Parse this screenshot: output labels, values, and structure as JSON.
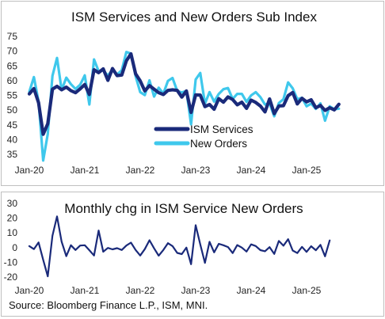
{
  "chart_data": [
    {
      "type": "line",
      "title": "ISM Services and New Orders Sub Index",
      "xlabel": "",
      "ylabel": "",
      "ylim": [
        35,
        75
      ],
      "yticks": [
        "75",
        "70",
        "65",
        "60",
        "55",
        "50",
        "45",
        "40",
        "35"
      ],
      "xticks": [
        "Jan-20",
        "Jan-21",
        "Jan-22",
        "Jan-23",
        "Jan-24",
        "Jan-25"
      ],
      "legend_position": "bottom-center",
      "grid": false,
      "x_start": "2020-01",
      "series": [
        {
          "name": "ISM Services",
          "color": "#1a2a7a",
          "values": [
            55.5,
            57.3,
            52.5,
            41.8,
            45.4,
            57.1,
            58.1,
            56.9,
            57.8,
            56.6,
            55.9,
            57.2,
            58.7,
            55.3,
            63.7,
            62.7,
            64.0,
            60.1,
            64.1,
            61.7,
            61.9,
            66.7,
            69.1,
            62.3,
            59.9,
            56.5,
            58.3,
            57.1,
            55.9,
            55.3,
            56.7,
            56.9,
            56.7,
            54.4,
            56.5,
            49.2,
            55.2,
            55.1,
            51.2,
            51.9,
            50.3,
            53.9,
            52.7,
            54.5,
            53.6,
            51.8,
            52.7,
            50.6,
            53.4,
            52.6,
            51.4,
            49.4,
            53.8,
            48.8,
            51.4,
            51.5,
            54.9,
            56.0,
            52.1,
            54.0,
            52.8,
            53.5,
            50.8,
            51.6,
            49.9,
            50.8,
            50.1,
            52.0
          ]
        },
        {
          "name": "New Orders",
          "color": "#3fc8ec",
          "values": [
            56.2,
            61.2,
            52.9,
            32.9,
            41.9,
            61.6,
            67.7,
            56.8,
            61.0,
            58.8,
            57.2,
            58.6,
            61.8,
            51.9,
            67.2,
            63.2,
            63.5,
            61.7,
            63.7,
            62.1,
            63.5,
            69.7,
            69.2,
            61.5,
            56.1,
            55.1,
            60.1,
            54.6,
            57.6,
            55.6,
            59.9,
            60.9,
            56.5,
            56.0,
            56.5,
            45.2,
            60.4,
            62.6,
            52.2,
            56.1,
            52.9,
            55.5,
            57.1,
            57.5,
            53.8,
            55.5,
            55.5,
            52.8,
            55.0,
            56.1,
            54.4,
            51.9,
            52.2,
            47.9,
            52.4,
            53.7,
            59.4,
            57.4,
            53.7,
            54.2,
            51.3,
            52.2,
            50.4,
            52.3,
            46.4,
            51.3,
            50.3,
            50.5
          ]
        }
      ]
    },
    {
      "type": "line",
      "title": "Monthly chg in ISM Service New Orders",
      "xlabel": "",
      "ylabel": "",
      "ylim": [
        -20,
        30
      ],
      "yticks": [
        "30",
        "20",
        "10",
        "0",
        "-10",
        "-20"
      ],
      "xticks": [
        "Jan-20",
        "Jan-21",
        "Jan-22",
        "Jan-23",
        "Jan-24",
        "Jan-25"
      ],
      "grid": false,
      "x_start": "2020-01",
      "series": [
        {
          "color": "#1a2a7a",
          "values": [
            1.0,
            -1.0,
            3.5,
            -8.3,
            -19.5,
            8.0,
            21.2,
            4.0,
            -5.8,
            1.6,
            -1.6,
            1.4,
            1.6,
            -1.8,
            -5.4,
            11.6,
            -2.8,
            -0.2,
            -1.2,
            -0.4,
            -1.6,
            1.4,
            3.4,
            -1.6,
            -5.4,
            -1.0,
            5.0,
            -0.5,
            -5.5,
            -1.6,
            3.0,
            1.0,
            -3.6,
            -4.4,
            0.0,
            -11.3,
            15.2,
            2.2,
            -10.4,
            3.9,
            -3.2,
            2.6,
            1.6,
            0.4,
            -3.7,
            1.7,
            0.0,
            -2.7,
            2.2,
            1.1,
            -1.7,
            -2.5,
            0.3,
            -4.3,
            4.5,
            1.3,
            5.7,
            -2.0,
            -3.7,
            0.5,
            -2.9,
            0.9,
            -1.8,
            1.9,
            -5.9,
            4.9
          ]
        }
      ]
    }
  ],
  "source_text": "Source: Bloomberg Finance L.P., ISM, MNI."
}
